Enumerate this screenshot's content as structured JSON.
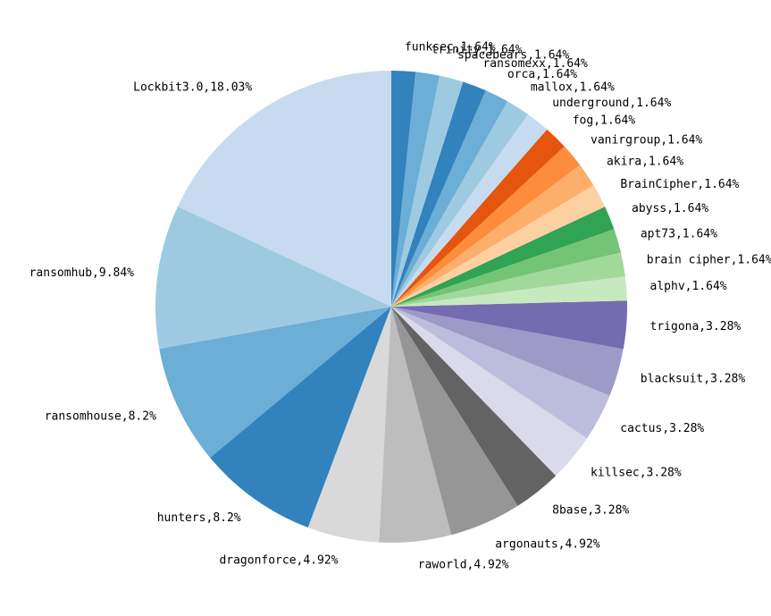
{
  "chart_data": {
    "type": "pie",
    "title": "",
    "start_angle_deg": 90,
    "direction": "counterclockwise",
    "legend": "none",
    "slices": [
      {
        "label": "Lockbit3.0,18.03%",
        "value": 18.03,
        "color": "#c6dbef"
      },
      {
        "label": "ransomhub,9.84%",
        "value": 9.84,
        "color": "#9ecae1"
      },
      {
        "label": "ransomhouse,8.2%",
        "value": 8.2,
        "color": "#6baed6"
      },
      {
        "label": "hunters,8.2%",
        "value": 8.2,
        "color": "#3182bd"
      },
      {
        "label": "dragonforce,4.92%",
        "value": 4.92,
        "color": "#d9d9d9"
      },
      {
        "label": "raworld,4.92%",
        "value": 4.92,
        "color": "#bdbdbd"
      },
      {
        "label": "argonauts,4.92%",
        "value": 4.92,
        "color": "#969696"
      },
      {
        "label": "8base,3.28%",
        "value": 3.28,
        "color": "#636363"
      },
      {
        "label": "killsec,3.28%",
        "value": 3.28,
        "color": "#dadaeb"
      },
      {
        "label": "cactus,3.28%",
        "value": 3.28,
        "color": "#bcbddc"
      },
      {
        "label": "blacksuit,3.28%",
        "value": 3.28,
        "color": "#9e9ac8"
      },
      {
        "label": "trigona,3.28%",
        "value": 3.28,
        "color": "#756bb1"
      },
      {
        "label": "alphv,1.64%",
        "value": 1.64,
        "color": "#c7e9c0"
      },
      {
        "label": "brain cipher,1.64%",
        "value": 1.64,
        "color": "#a1d99b"
      },
      {
        "label": "apt73,1.64%",
        "value": 1.64,
        "color": "#74c476"
      },
      {
        "label": "abyss,1.64%",
        "value": 1.64,
        "color": "#31a354"
      },
      {
        "label": "BrainCipher,1.64%",
        "value": 1.64,
        "color": "#fdd0a2"
      },
      {
        "label": "akira,1.64%",
        "value": 1.64,
        "color": "#fdae6b"
      },
      {
        "label": "vanirgroup,1.64%",
        "value": 1.64,
        "color": "#fd8d3c"
      },
      {
        "label": "fog,1.64%",
        "value": 1.64,
        "color": "#e6550d"
      },
      {
        "label": "underground,1.64%",
        "value": 1.64,
        "color": "#c6dbef"
      },
      {
        "label": "mallox,1.64%",
        "value": 1.64,
        "color": "#9ecae1"
      },
      {
        "label": "orca,1.64%",
        "value": 1.64,
        "color": "#6baed6"
      },
      {
        "label": "ransomexx,1.64%",
        "value": 1.64,
        "color": "#3182bd"
      },
      {
        "label": "spacebears,1.64%",
        "value": 1.64,
        "color": "#ffffff"
      },
      {
        "label": "trinity,1.64%",
        "value": 1.64,
        "color": "#ffffff"
      },
      {
        "label": "funksec,1.64%",
        "value": 1.64,
        "color": "#ffffff"
      }
    ]
  }
}
